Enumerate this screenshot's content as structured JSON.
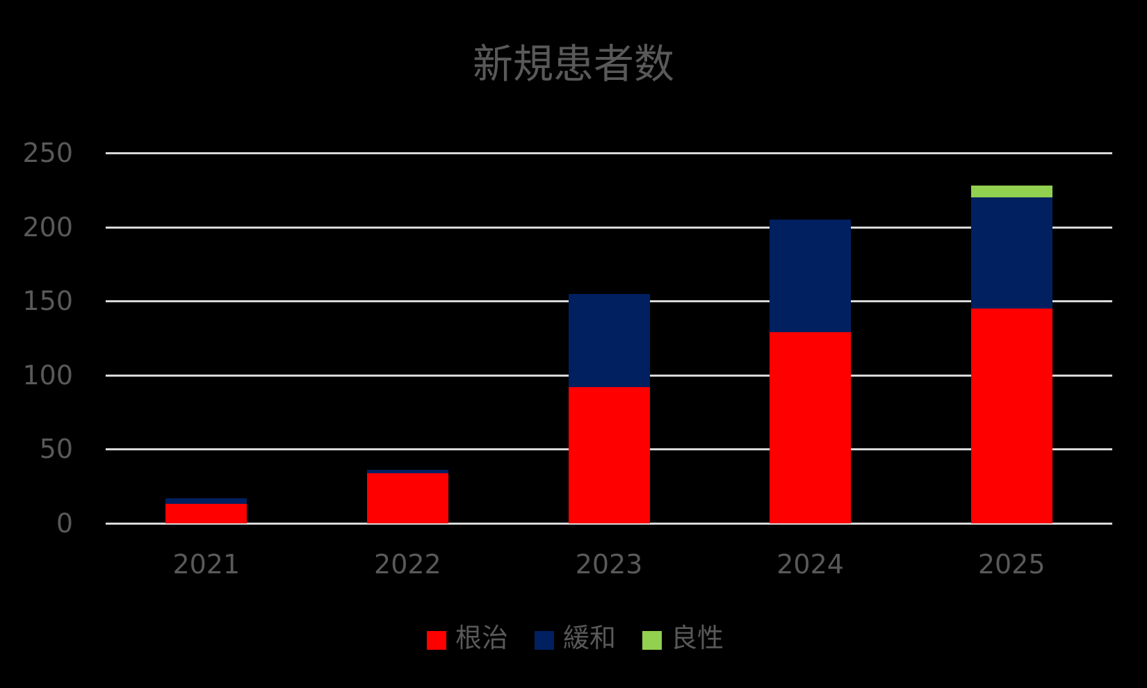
{
  "chart_data": {
    "type": "bar",
    "stacked": true,
    "title": "新規患者数",
    "xlabel": "",
    "ylabel": "",
    "categories": [
      "2021",
      "2022",
      "2023",
      "2024",
      "2025"
    ],
    "series": [
      {
        "name": "根治",
        "color": "#FF0000",
        "values": [
          13,
          34,
          92,
          129,
          145
        ]
      },
      {
        "name": "緩和",
        "color": "#002060",
        "values": [
          4,
          2,
          63,
          76,
          75
        ]
      },
      {
        "name": "良性",
        "color": "#92D050",
        "values": [
          0,
          0,
          0,
          0,
          8
        ]
      }
    ],
    "ylim": [
      0,
      250
    ],
    "yticks": [
      "0",
      "50",
      "100",
      "150",
      "200",
      "250"
    ],
    "grid": true,
    "legend_position": "bottom"
  },
  "colors": {
    "background": "#000000",
    "text": "#595959",
    "gridline": "#D9D9D9"
  }
}
